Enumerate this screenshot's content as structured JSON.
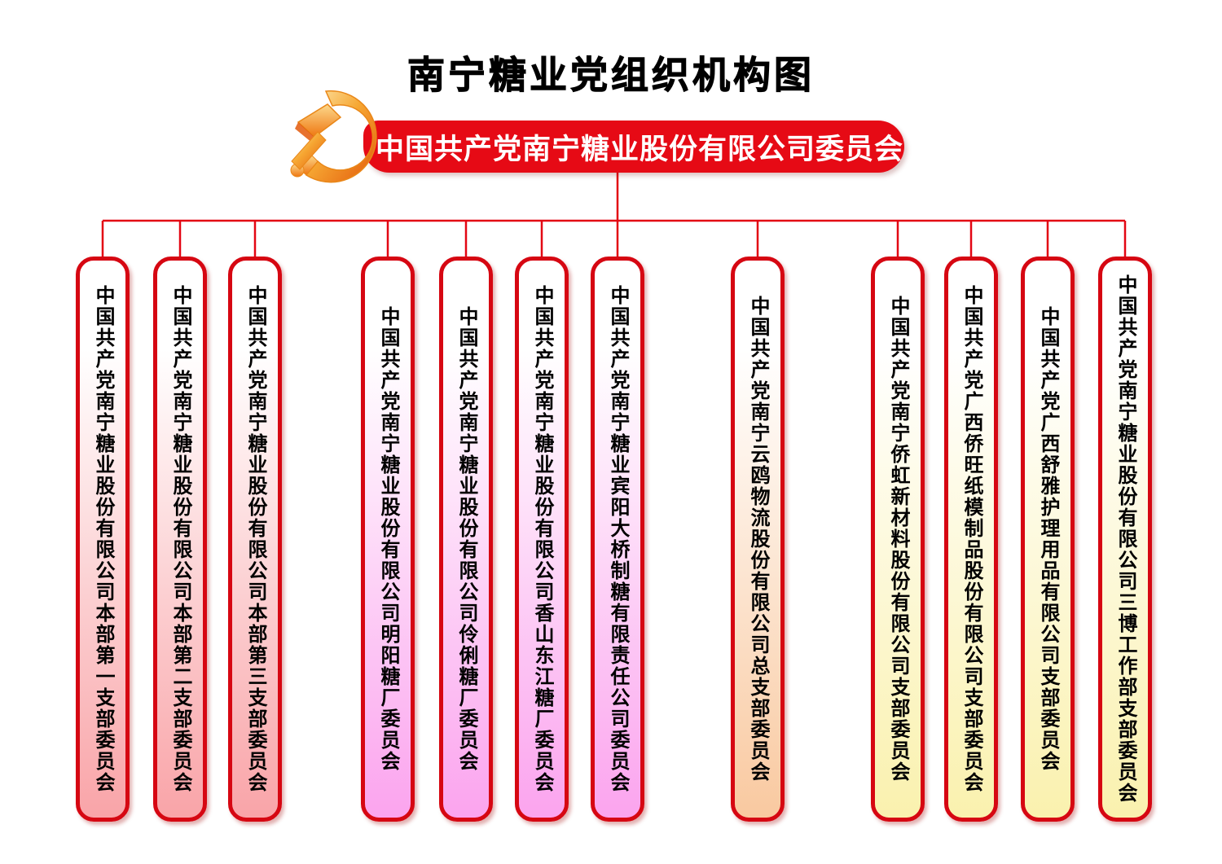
{
  "title": "南宁糖业党组织机构图",
  "root": {
    "label": "中国共产党南宁糖业股份有限公司委员会",
    "banner_color": "#e60a15",
    "emblem": "party-emblem-hammer-and-sickle"
  },
  "colors": {
    "connector_red": "#e30613",
    "box_border_red": "#d60712",
    "theme_pink": "#f9a4a8",
    "theme_magenta": "#fba4ee",
    "theme_peach": "#f9c9a0",
    "theme_yellow": "#faf1ae",
    "emblem_gold_light": "#fde2a0",
    "emblem_gold_dark": "#e3590a"
  },
  "branches": [
    {
      "label": "中国共产党南宁糖业股份有限公司本部第一支部委员会",
      "theme": "theme_pink"
    },
    {
      "label": "中国共产党南宁糖业股份有限公司本部第二支部委员会",
      "theme": "theme_pink"
    },
    {
      "label": "中国共产党南宁糖业股份有限公司本部第三支部委员会",
      "theme": "theme_pink"
    },
    {
      "label": "中国共产党南宁糖业股份有限公司明阳糖厂委员会",
      "theme": "theme_magenta"
    },
    {
      "label": "中国共产党南宁糖业股份有限公司伶俐糖厂委员会",
      "theme": "theme_magenta"
    },
    {
      "label": "中国共产党南宁糖业股份有限公司香山东江糖厂委员会",
      "theme": "theme_magenta"
    },
    {
      "label": "中国共产党南宁糖业宾阳大桥制糖有限责任公司委员会",
      "theme": "theme_magenta"
    },
    {
      "label": "中国共产党南宁云鸥物流股份有限公司总支部委员会",
      "theme": "theme_peach"
    },
    {
      "label": "中国共产党南宁侨虹新材料股份有限公司支部委员会",
      "theme": "theme_yellow"
    },
    {
      "label": "中国共产党广西侨旺纸模制品股份有限公司支部委员会",
      "theme": "theme_yellow"
    },
    {
      "label": "中国共产党广西舒雅护理用品有限公司支部委员会",
      "theme": "theme_yellow"
    },
    {
      "label": "中国共产党南宁糖业股份有限公司三博工作部支部委员会",
      "theme": "theme_yellow"
    }
  ]
}
